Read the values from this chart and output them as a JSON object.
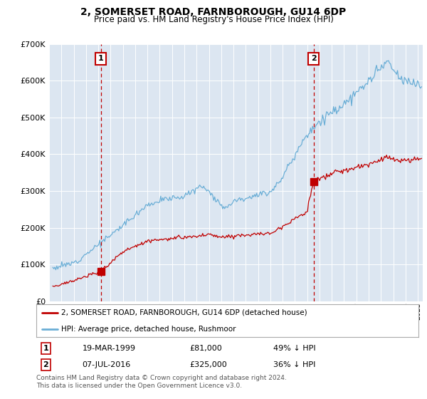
{
  "title": "2, SOMERSET ROAD, FARNBOROUGH, GU14 6DP",
  "subtitle": "Price paid vs. HM Land Registry's House Price Index (HPI)",
  "legend_line1": "2, SOMERSET ROAD, FARNBOROUGH, GU14 6DP (detached house)",
  "legend_line2": "HPI: Average price, detached house, Rushmoor",
  "sale1_date": "19-MAR-1999",
  "sale1_price": 81000,
  "sale1_pct": "49% ↓ HPI",
  "sale1_year": 1999.21,
  "sale2_date": "07-JUL-2016",
  "sale2_price": 325000,
  "sale2_pct": "36% ↓ HPI",
  "sale2_year": 2016.52,
  "footnote": "Contains HM Land Registry data © Crown copyright and database right 2024.\nThis data is licensed under the Open Government Licence v3.0.",
  "hpi_color": "#6aaed6",
  "price_color": "#c00000",
  "bg_color": "#dce6f1",
  "grid_color": "#b8c8dc",
  "ylim": [
    0,
    700000
  ],
  "xlim_start": 1995.3,
  "xlim_end": 2025.4
}
